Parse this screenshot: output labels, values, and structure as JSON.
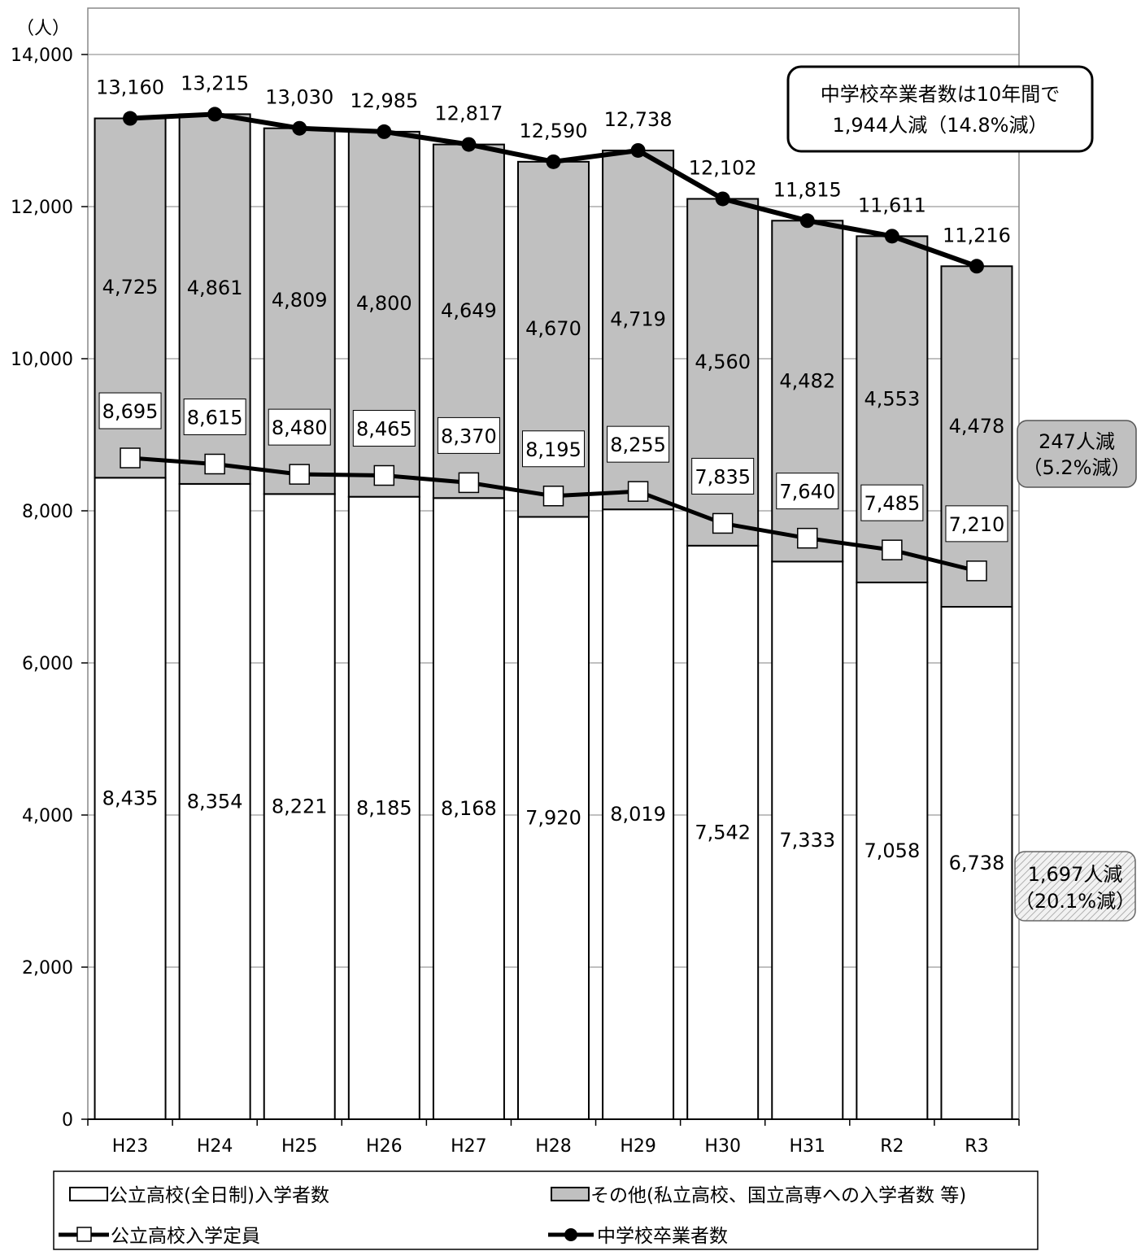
{
  "chart_data": {
    "type": "bar",
    "stacked": true,
    "unit_label": "（人）",
    "categories": [
      "H23",
      "H24",
      "H25",
      "H26",
      "H27",
      "H28",
      "H29",
      "H30",
      "H31",
      "R2",
      "R3"
    ],
    "ylim": [
      0,
      14000
    ],
    "yticks": [
      0,
      2000,
      4000,
      6000,
      8000,
      10000,
      12000,
      14000
    ],
    "ytick_labels": [
      "0",
      "2,000",
      "4,000",
      "6,000",
      "8,000",
      "10,000",
      "12,000",
      "14,000"
    ],
    "grid": true,
    "series": [
      {
        "name": "公立高校(全日制)入学者数",
        "kind": "bar",
        "values": [
          8435,
          8354,
          8221,
          8185,
          8168,
          7920,
          8019,
          7542,
          7333,
          7058,
          6738
        ],
        "labels": [
          "8,435",
          "8,354",
          "8,221",
          "8,185",
          "8,168",
          "7,920",
          "8,019",
          "7,542",
          "7,333",
          "7,058",
          "6,738"
        ],
        "color": "#ffffff"
      },
      {
        "name": "その他(私立高校、国立高専への入学者数 等)",
        "kind": "bar",
        "values": [
          4725,
          4861,
          4809,
          4800,
          4649,
          4670,
          4719,
          4560,
          4482,
          4553,
          4478
        ],
        "labels": [
          "4,725",
          "4,861",
          "4,809",
          "4,800",
          "4,649",
          "4,670",
          "4,719",
          "4,560",
          "4,482",
          "4,553",
          "4,478"
        ],
        "color": "#c0c0c0"
      },
      {
        "name": "公立高校入学定員",
        "kind": "line",
        "marker": "square",
        "values": [
          8695,
          8615,
          8480,
          8465,
          8370,
          8195,
          8255,
          7835,
          7640,
          7485,
          7210
        ],
        "labels": [
          "8,695",
          "8,615",
          "8,480",
          "8,465",
          "8,370",
          "8,195",
          "8,255",
          "7,835",
          "7,640",
          "7,485",
          "7,210"
        ],
        "color": "#000000"
      },
      {
        "name": "中学校卒業者数",
        "kind": "line",
        "marker": "circle",
        "values": [
          13160,
          13215,
          13030,
          12985,
          12817,
          12590,
          12738,
          12102,
          11815,
          11611,
          11216
        ],
        "labels": [
          "13,160",
          "13,215",
          "13,030",
          "12,985",
          "12,817",
          "12,590",
          "12,738",
          "12,102",
          "11,815",
          "11,611",
          "11,216"
        ],
        "color": "#000000"
      }
    ],
    "annotations": {
      "graduates_note": [
        "中学校卒業者数は10年間で",
        "1,944人減（14.8%減）"
      ],
      "other_note": [
        "247人減",
        "（5.2%減）"
      ],
      "public_note": [
        "1,697人減",
        "（20.1%減）"
      ]
    },
    "legend": {
      "placement": "bottom",
      "items": [
        "公立高校(全日制)入学者数",
        "その他(私立高校、国立高専への入学者数 等)",
        "公立高校入学定員",
        "中学校卒業者数"
      ]
    }
  }
}
